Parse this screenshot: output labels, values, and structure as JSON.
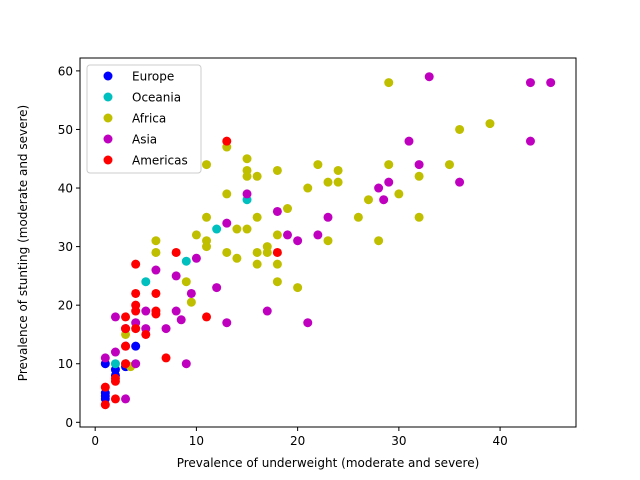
{
  "chart_data": {
    "type": "scatter",
    "xlabel": "Prevalence of underweight (moderate and severe)",
    "ylabel": "Prevalence of stunting (moderate and severe)",
    "xlim": [
      -1.5,
      47.5
    ],
    "ylim": [
      -0.8,
      62.2
    ],
    "xticks": [
      0,
      10,
      20,
      30,
      40
    ],
    "yticks": [
      0,
      10,
      20,
      30,
      40,
      50,
      60
    ],
    "grid": false,
    "legend_position": "top-left",
    "series": [
      {
        "name": "Europe",
        "color": "#0000ff",
        "points": [
          [
            1,
            10
          ],
          [
            1,
            5
          ],
          [
            1,
            4.5
          ],
          [
            1,
            4
          ],
          [
            2,
            8
          ],
          [
            2,
            9
          ],
          [
            3,
            9.5
          ],
          [
            4,
            13
          ]
        ]
      },
      {
        "name": "Oceania",
        "color": "#00bfbf",
        "points": [
          [
            2,
            10
          ],
          [
            3,
            10
          ],
          [
            5,
            24
          ],
          [
            9,
            27.5
          ],
          [
            12,
            33
          ],
          [
            15,
            38
          ]
        ]
      },
      {
        "name": "Africa",
        "color": "#bfbf00",
        "points": [
          [
            3,
            15
          ],
          [
            3.5,
            9.5
          ],
          [
            6,
            31
          ],
          [
            6,
            29
          ],
          [
            9,
            24
          ],
          [
            9.5,
            20.5
          ],
          [
            10,
            32
          ],
          [
            11,
            35
          ],
          [
            11,
            31
          ],
          [
            11,
            30
          ],
          [
            11,
            44
          ],
          [
            13,
            47
          ],
          [
            13,
            39
          ],
          [
            13,
            29
          ],
          [
            14,
            33
          ],
          [
            14,
            28
          ],
          [
            15,
            45
          ],
          [
            15,
            43
          ],
          [
            15,
            42
          ],
          [
            15,
            33
          ],
          [
            16,
            42
          ],
          [
            16,
            35
          ],
          [
            16,
            29
          ],
          [
            16,
            27
          ],
          [
            17,
            30
          ],
          [
            17,
            29
          ],
          [
            18,
            43
          ],
          [
            18,
            32
          ],
          [
            18,
            27
          ],
          [
            18,
            24
          ],
          [
            19,
            36.5
          ],
          [
            20,
            23
          ],
          [
            21,
            40
          ],
          [
            22,
            44
          ],
          [
            23,
            41
          ],
          [
            23,
            31
          ],
          [
            24,
            43
          ],
          [
            24,
            41
          ],
          [
            26,
            35
          ],
          [
            27,
            38
          ],
          [
            28,
            31
          ],
          [
            29,
            58
          ],
          [
            29,
            44
          ],
          [
            30,
            39
          ],
          [
            32,
            42
          ],
          [
            32,
            35
          ],
          [
            35,
            44
          ],
          [
            36,
            50
          ],
          [
            39,
            51
          ]
        ]
      },
      {
        "name": "Asia",
        "color": "#bf00bf",
        "points": [
          [
            1,
            11
          ],
          [
            2,
            18
          ],
          [
            2,
            12
          ],
          [
            3,
            4
          ],
          [
            3,
            16
          ],
          [
            3,
            13
          ],
          [
            4,
            17
          ],
          [
            4,
            10
          ],
          [
            5,
            19
          ],
          [
            5,
            16
          ],
          [
            6,
            26
          ],
          [
            7,
            16
          ],
          [
            8,
            25
          ],
          [
            8,
            19
          ],
          [
            8.5,
            17.5
          ],
          [
            9,
            10
          ],
          [
            9.5,
            22
          ],
          [
            10,
            28
          ],
          [
            12,
            23
          ],
          [
            13,
            34
          ],
          [
            13,
            17
          ],
          [
            15,
            39
          ],
          [
            17,
            19
          ],
          [
            18,
            36
          ],
          [
            19,
            32
          ],
          [
            20,
            31
          ],
          [
            21,
            17
          ],
          [
            22,
            32
          ],
          [
            23,
            35
          ],
          [
            28,
            40
          ],
          [
            28.5,
            38
          ],
          [
            29,
            41
          ],
          [
            31,
            48
          ],
          [
            32,
            44
          ],
          [
            33,
            59
          ],
          [
            36,
            41
          ],
          [
            43,
            58
          ],
          [
            43,
            48
          ],
          [
            45,
            58
          ]
        ]
      },
      {
        "name": "Americas",
        "color": "#ff0000",
        "points": [
          [
            1,
            3
          ],
          [
            1,
            6
          ],
          [
            2,
            4
          ],
          [
            2,
            7
          ],
          [
            2,
            7.5
          ],
          [
            3,
            10
          ],
          [
            3,
            13
          ],
          [
            3,
            16
          ],
          [
            3,
            18
          ],
          [
            4,
            27
          ],
          [
            4,
            22
          ],
          [
            4,
            20
          ],
          [
            4,
            19
          ],
          [
            4,
            16
          ],
          [
            5,
            15
          ],
          [
            6,
            22
          ],
          [
            6,
            19
          ],
          [
            6,
            18.5
          ],
          [
            7,
            11
          ],
          [
            8,
            29
          ],
          [
            11,
            18
          ],
          [
            13,
            48
          ],
          [
            18,
            29
          ]
        ]
      }
    ]
  }
}
